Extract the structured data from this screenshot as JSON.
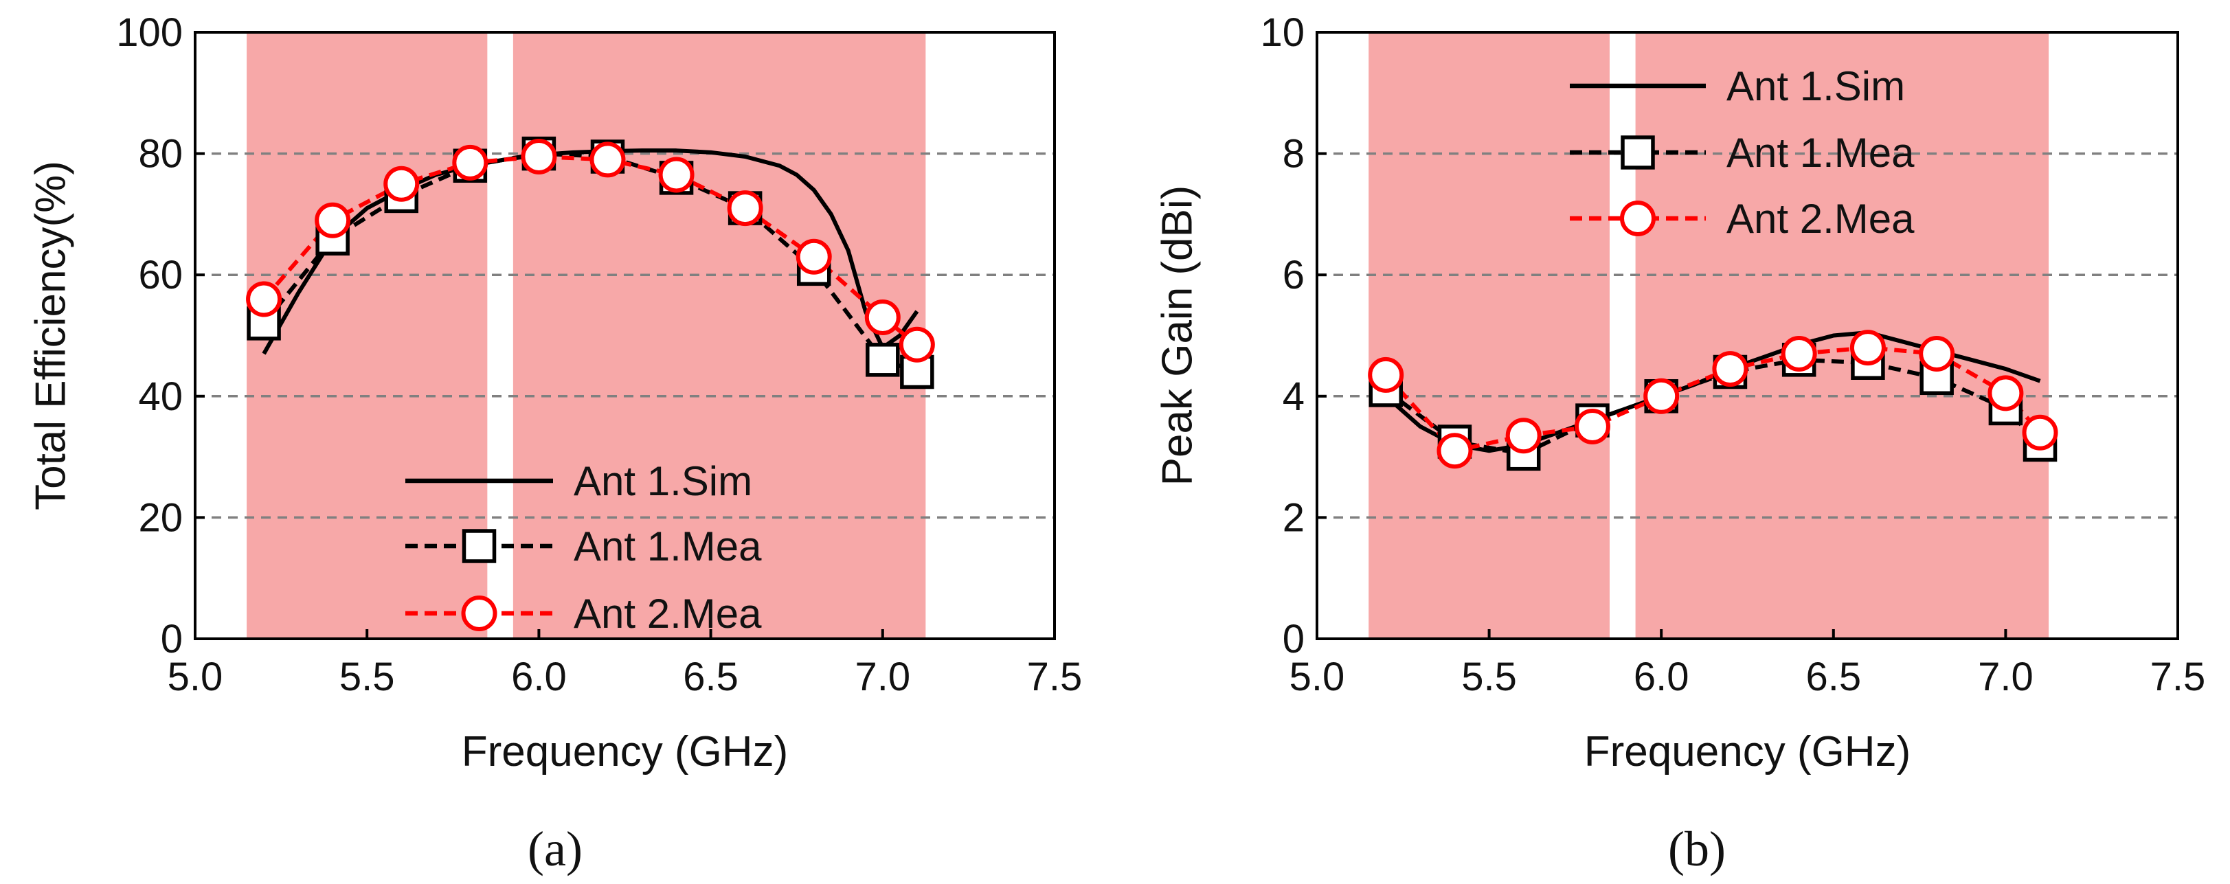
{
  "colors": {
    "band": "#f7a8a8",
    "sim": "#000000",
    "mea1": "#000000",
    "mea2": "#ff0000",
    "grid": "#808080"
  },
  "chart_data": [
    {
      "panel_label": "(a)",
      "type": "line",
      "xlabel": "Frequency (GHz)",
      "ylabel": "Total Efficiency(%)",
      "xlim": [
        5.0,
        7.5
      ],
      "ylim": [
        0,
        100
      ],
      "xticks": [
        5.0,
        5.5,
        6.0,
        6.5,
        7.0,
        7.5
      ],
      "xtick_labels": [
        "5.0",
        "5.5",
        "6.0",
        "6.5",
        "7.0",
        "7.5"
      ],
      "yticks": [
        0,
        20,
        40,
        60,
        80,
        100
      ],
      "ytick_labels": [
        "0",
        "20",
        "40",
        "60",
        "80",
        "100"
      ],
      "grid": "horizontal dashed",
      "legend_position": "bottom-center",
      "shaded_bands": [
        [
          5.15,
          5.85
        ],
        [
          5.925,
          7.125
        ]
      ],
      "series": [
        {
          "name": "Ant 1.Sim",
          "style": "solid",
          "marker": "none",
          "x": [
            5.2,
            5.3,
            5.4,
            5.5,
            5.6,
            5.7,
            5.8,
            5.9,
            6.0,
            6.1,
            6.2,
            6.3,
            6.4,
            6.5,
            6.6,
            6.7,
            6.75,
            6.8,
            6.85,
            6.9,
            6.95,
            7.0,
            7.05,
            7.1
          ],
          "y": [
            47,
            57,
            66,
            71,
            74,
            76.5,
            78,
            79,
            79.8,
            80.2,
            80.4,
            80.5,
            80.5,
            80.2,
            79.5,
            78,
            76.5,
            74,
            70,
            64,
            54,
            48,
            50,
            54
          ]
        },
        {
          "name": "Ant 1.Mea",
          "style": "dashed",
          "marker": "square",
          "x": [
            5.2,
            5.4,
            5.6,
            5.8,
            6.0,
            6.2,
            6.4,
            6.6,
            6.8,
            7.0,
            7.1
          ],
          "y": [
            52,
            66,
            73,
            78,
            80,
            79.5,
            76,
            71,
            61,
            46,
            44
          ]
        },
        {
          "name": "Ant 2.Mea",
          "style": "dashed",
          "marker": "circle",
          "x": [
            5.2,
            5.4,
            5.6,
            5.8,
            6.0,
            6.2,
            6.4,
            6.6,
            6.8,
            7.0,
            7.1
          ],
          "y": [
            56,
            69,
            75,
            78.5,
            79.5,
            79,
            76.5,
            71,
            63,
            53,
            48.5
          ]
        }
      ]
    },
    {
      "panel_label": "(b)",
      "type": "line",
      "xlabel": "Frequency (GHz)",
      "ylabel": "Peak Gain (dBi)",
      "xlim": [
        5.0,
        7.5
      ],
      "ylim": [
        0,
        10
      ],
      "xticks": [
        5.0,
        5.5,
        6.0,
        6.5,
        7.0,
        7.5
      ],
      "xtick_labels": [
        "5.0",
        "5.5",
        "6.0",
        "6.5",
        "7.0",
        "7.5"
      ],
      "yticks": [
        0,
        2,
        4,
        6,
        8,
        10
      ],
      "ytick_labels": [
        "0",
        "2",
        "4",
        "6",
        "8",
        "10"
      ],
      "grid": "horizontal dashed",
      "legend_position": "top-center",
      "shaded_bands": [
        [
          5.15,
          5.85
        ],
        [
          5.925,
          7.125
        ]
      ],
      "series": [
        {
          "name": "Ant 1.Sim",
          "style": "solid",
          "marker": "none",
          "x": [
            5.2,
            5.3,
            5.4,
            5.5,
            5.6,
            5.7,
            5.8,
            5.9,
            6.0,
            6.1,
            6.2,
            6.3,
            6.4,
            6.5,
            6.6,
            6.7,
            6.8,
            6.9,
            7.0,
            7.1
          ],
          "y": [
            4.0,
            3.5,
            3.2,
            3.1,
            3.2,
            3.4,
            3.6,
            3.8,
            4.0,
            4.2,
            4.45,
            4.65,
            4.85,
            5.0,
            5.05,
            4.9,
            4.75,
            4.6,
            4.45,
            4.25
          ]
        },
        {
          "name": "Ant 1.Mea",
          "style": "dashed",
          "marker": "square",
          "x": [
            5.2,
            5.4,
            5.6,
            5.8,
            6.0,
            6.2,
            6.4,
            6.6,
            6.8,
            7.0,
            7.1
          ],
          "y": [
            4.1,
            3.25,
            3.05,
            3.6,
            4.0,
            4.4,
            4.6,
            4.55,
            4.3,
            3.8,
            3.2
          ]
        },
        {
          "name": "Ant 2.Mea",
          "style": "dashed",
          "marker": "circle",
          "x": [
            5.2,
            5.4,
            5.6,
            5.8,
            6.0,
            6.2,
            6.4,
            6.6,
            6.8,
            7.0,
            7.1
          ],
          "y": [
            4.35,
            3.1,
            3.35,
            3.5,
            4.0,
            4.45,
            4.7,
            4.8,
            4.7,
            4.05,
            3.4
          ]
        }
      ]
    }
  ]
}
